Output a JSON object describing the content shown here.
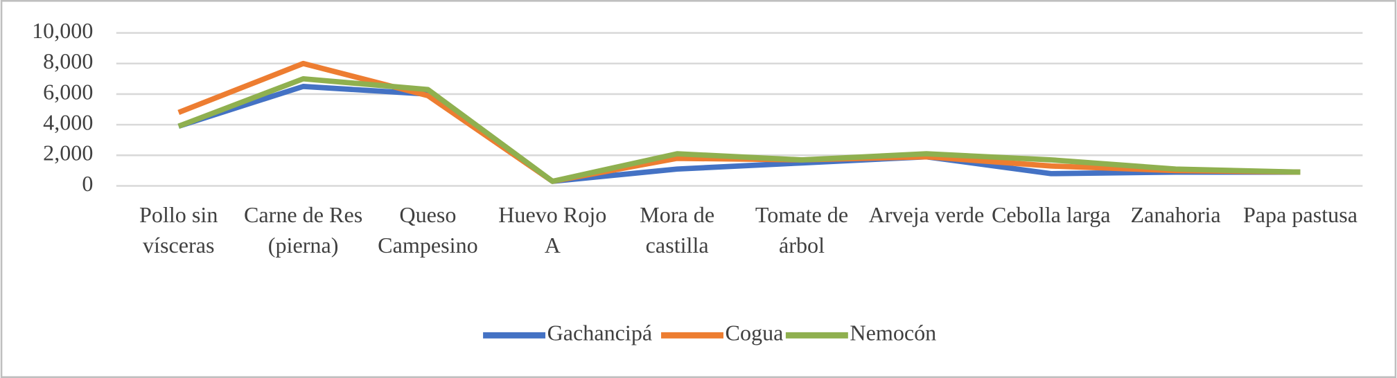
{
  "chart_data": {
    "type": "line",
    "categories": [
      "Pollo sin vísceras",
      "Carne de Res (pierna)",
      "Queso Campesino",
      "Huevo Rojo A",
      "Mora de castilla",
      "Tomate de árbol",
      "Arveja verde",
      "Cebolla larga",
      "Zanahoria",
      "Papa pastusa"
    ],
    "series": [
      {
        "name": "Gachancipá",
        "color": "#4472c4",
        "values": [
          3900,
          6500,
          6000,
          300,
          1100,
          1500,
          1900,
          800,
          900,
          900
        ]
      },
      {
        "name": "Cogua",
        "color": "#ed7d31",
        "values": [
          4800,
          8000,
          5900,
          300,
          1800,
          1700,
          1900,
          1300,
          1000,
          900
        ]
      },
      {
        "name": "Nemocón",
        "color": "#8fb04f",
        "values": [
          3900,
          7000,
          6300,
          300,
          2100,
          1700,
          2100,
          1700,
          1100,
          900
        ]
      }
    ],
    "ylim": [
      0,
      10000
    ],
    "yticks": [
      0,
      {
        "value": 2000,
        "label": "2,000"
      },
      {
        "value": 4000,
        "label": "4,000"
      },
      {
        "value": 6000,
        "label": "6,000"
      },
      {
        "value": 8000,
        "label": "8,000"
      },
      {
        "value": 10000,
        "label": "10,000"
      }
    ],
    "grid": true,
    "legend": "bottom"
  }
}
